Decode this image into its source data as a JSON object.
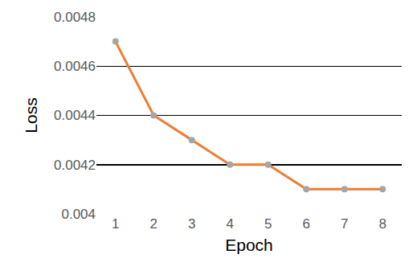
{
  "chart_data": {
    "type": "line",
    "x_label": "Epoch",
    "y_label": "Loss",
    "categories": [
      "1",
      "2",
      "3",
      "4",
      "5",
      "6",
      "7",
      "8"
    ],
    "values": [
      0.0047,
      0.0044,
      0.0043,
      0.0042,
      0.0042,
      0.0041,
      0.0041,
      0.0041
    ],
    "color": "#ed7d31",
    "marker": "circle",
    "ylim": [
      0.004,
      0.0048
    ],
    "yticks": [
      0.004,
      0.0042,
      0.0044,
      0.0046,
      0.0048
    ],
    "grid": true
  }
}
